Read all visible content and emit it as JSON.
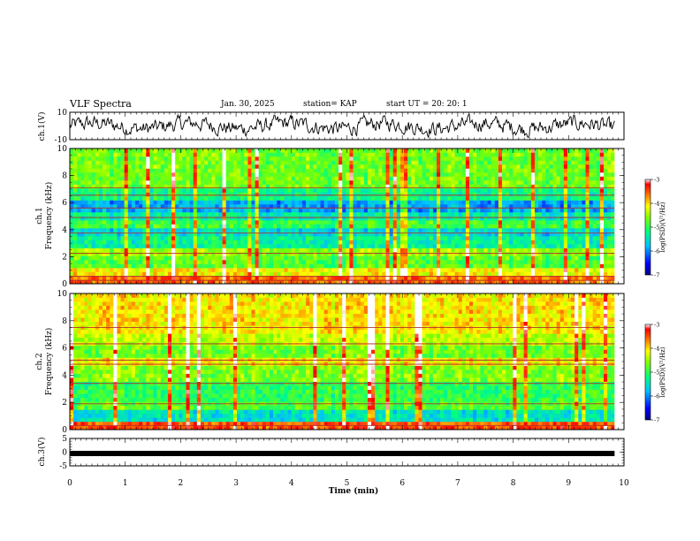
{
  "header": {
    "title": "VLF Spectra",
    "date": "Jan. 30, 2025",
    "station": "station= KAP",
    "start": "start  UT =   20: 20: 1"
  },
  "chart_data": [
    {
      "type": "line",
      "name": "ch1-waveform",
      "ylabel": "ch.1(V)",
      "ylim": [
        -10,
        10
      ],
      "yticks": [
        "10",
        "-10"
      ],
      "xlim": [
        0,
        10
      ],
      "x_end": 9.83,
      "description_series": "noisy waveform roughly between -8 and 8 V"
    },
    {
      "type": "heatmap",
      "name": "ch1-spectrogram",
      "ylabel": "Frequency (kHz)",
      "channel_label": "ch.1",
      "ylim": [
        0,
        10
      ],
      "yticks": [
        "0",
        "2",
        "4",
        "6",
        "8",
        "10"
      ],
      "xlim": [
        0,
        10
      ],
      "x_end": 9.83,
      "bands": [
        {
          "f0": 0.0,
          "f1": 0.6,
          "level": 0.85
        },
        {
          "f0": 0.6,
          "f1": 1.3,
          "level": 0.72
        },
        {
          "f0": 1.3,
          "f1": 2.0,
          "level": 0.55
        },
        {
          "f0": 2.0,
          "f1": 2.6,
          "level": 0.62
        },
        {
          "f0": 2.6,
          "f1": 3.5,
          "level": 0.42
        },
        {
          "f0": 3.5,
          "f1": 4.0,
          "level": 0.35
        },
        {
          "f0": 4.0,
          "f1": 4.8,
          "level": 0.52
        },
        {
          "f0": 4.8,
          "f1": 5.3,
          "level": 0.4
        },
        {
          "f0": 5.3,
          "f1": 6.3,
          "level": 0.28
        },
        {
          "f0": 6.3,
          "f1": 7.2,
          "level": 0.45
        },
        {
          "f0": 7.2,
          "f1": 10.0,
          "level": 0.58
        }
      ],
      "lines_khz": [
        0.25,
        0.55,
        2.25,
        3.75,
        4.9,
        5.6,
        6.55,
        7.1
      ]
    },
    {
      "type": "heatmap",
      "name": "ch2-spectrogram",
      "ylabel": "Frequency (kHz)",
      "channel_label": "ch.2",
      "ylim": [
        0,
        10
      ],
      "yticks": [
        "0",
        "2",
        "4",
        "6",
        "8",
        "10"
      ],
      "xlim": [
        0,
        10
      ],
      "x_end": 9.83,
      "bands": [
        {
          "f0": 0.0,
          "f1": 0.5,
          "level": 0.88
        },
        {
          "f0": 0.5,
          "f1": 1.5,
          "level": 0.38
        },
        {
          "f0": 1.5,
          "f1": 2.2,
          "level": 0.55
        },
        {
          "f0": 2.2,
          "f1": 3.5,
          "level": 0.5
        },
        {
          "f0": 3.5,
          "f1": 4.6,
          "level": 0.6
        },
        {
          "f0": 4.6,
          "f1": 5.4,
          "level": 0.72
        },
        {
          "f0": 5.4,
          "f1": 6.2,
          "level": 0.58
        },
        {
          "f0": 6.2,
          "f1": 7.0,
          "level": 0.66
        },
        {
          "f0": 7.0,
          "f1": 10.0,
          "level": 0.74
        }
      ],
      "lines_khz": [
        0.3,
        1.9,
        3.4,
        4.8,
        5.1,
        6.3,
        7.5
      ]
    },
    {
      "type": "line",
      "name": "ch3-waveform",
      "ylabel": "ch.3(V)",
      "ylim": [
        -5,
        5
      ],
      "yticks": [
        "5",
        "0",
        "-5"
      ],
      "xlim": [
        0,
        10
      ],
      "x_end": 9.83,
      "value": -0.5
    }
  ],
  "colorbars": [
    {
      "label": "log(PSD)(V²/Hz)",
      "range": [
        -7,
        -3
      ],
      "ticks": [
        "-3",
        "-4",
        "-5",
        "-6",
        "-7"
      ]
    },
    {
      "label": "log(PSD)(V²/Hz)",
      "range": [
        -7,
        -3
      ],
      "ticks": [
        "-3",
        "-4",
        "-5",
        "-6",
        "-7"
      ]
    }
  ],
  "xaxis": {
    "label": "Time (min)",
    "ticks": [
      "0",
      "1",
      "2",
      "3",
      "4",
      "5",
      "6",
      "7",
      "8",
      "9",
      "10"
    ]
  }
}
